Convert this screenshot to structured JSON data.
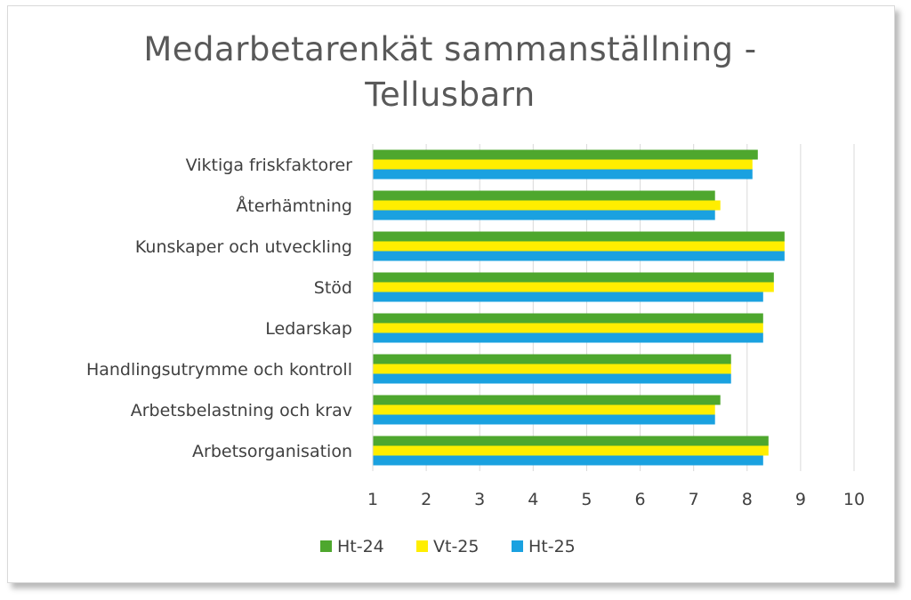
{
  "chart_data": {
    "type": "bar",
    "orientation": "horizontal",
    "title_line1": "Medarbetarenkät sammanställning -",
    "title_line2": "Tellusbarn",
    "categories": [
      "Viktiga friskfaktorer",
      "Återhämtning",
      "Kunskaper och utveckling",
      "Stöd",
      "Ledarskap",
      "Handlingsutrymme och kontroll",
      "Arbetsbelastning och krav",
      "Arbetsorganisation"
    ],
    "series": [
      {
        "name": "Ht-24",
        "color": "#4ea72e",
        "values": [
          8.2,
          7.4,
          8.7,
          8.5,
          8.3,
          7.7,
          7.5,
          8.4
        ]
      },
      {
        "name": "Vt-25",
        "color": "#ffee00",
        "values": [
          8.1,
          7.5,
          8.7,
          8.5,
          8.3,
          7.7,
          7.4,
          8.4
        ]
      },
      {
        "name": "Ht-25",
        "color": "#1aa1e0",
        "values": [
          8.1,
          7.4,
          8.7,
          8.3,
          8.3,
          7.7,
          7.4,
          8.3
        ]
      }
    ],
    "xlim": [
      1,
      10
    ],
    "xticks": [
      "1",
      "2",
      "3",
      "4",
      "5",
      "6",
      "7",
      "8",
      "9",
      "10"
    ],
    "grid": true,
    "legend_position": "bottom"
  }
}
